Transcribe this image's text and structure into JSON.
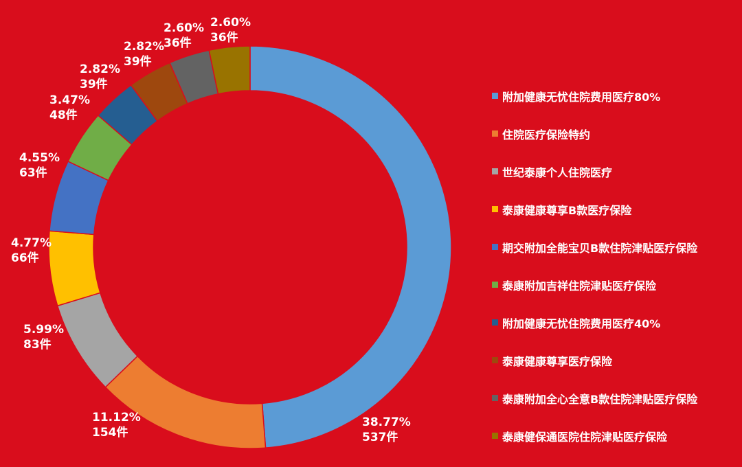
{
  "chart_data": {
    "type": "pie",
    "donut": true,
    "title": "",
    "background_color": "#D90D1C",
    "legend_position": "right",
    "series": [
      {
        "name": "附加健康无忧住院费用医疗80%",
        "percent_label": "38.77%",
        "count_label": "537件",
        "value": 537,
        "color": "#5B9BD5"
      },
      {
        "name": "住院医疗保险特约",
        "percent_label": "11.12%",
        "count_label": "154件",
        "value": 154,
        "color": "#ED7D31"
      },
      {
        "name": "世纪泰康个人住院医疗",
        "percent_label": "5.99%",
        "count_label": "83件",
        "value": 83,
        "color": "#A5A5A5"
      },
      {
        "name": "泰康健康尊享B款医疗保险",
        "percent_label": "4.77%",
        "count_label": "66件",
        "value": 66,
        "color": "#FFC000"
      },
      {
        "name": "期交附加全能宝贝B款住院津贴医疗保险",
        "percent_label": "4.55%",
        "count_label": "63件",
        "value": 63,
        "color": "#4472C4"
      },
      {
        "name": "泰康附加吉祥住院津贴医疗保险",
        "percent_label": "3.47%",
        "count_label": "48件",
        "value": 48,
        "color": "#70AD47"
      },
      {
        "name": "附加健康无忧住院费用医疗40%",
        "percent_label": "2.82%",
        "count_label": "39件",
        "value": 39,
        "color": "#255E91"
      },
      {
        "name": "泰康健康尊享医疗保险",
        "percent_label": "2.82%",
        "count_label": "39件",
        "value": 39,
        "color": "#9E480E"
      },
      {
        "name": "泰康附加全心全意B款住院津贴医疗保险",
        "percent_label": "2.60%",
        "count_label": "36件",
        "value": 36,
        "color": "#636363"
      },
      {
        "name": "泰康健保通医院住院津贴医疗保险",
        "percent_label": "2.60%",
        "count_label": "36件",
        "value": 36,
        "color": "#997300"
      }
    ]
  }
}
